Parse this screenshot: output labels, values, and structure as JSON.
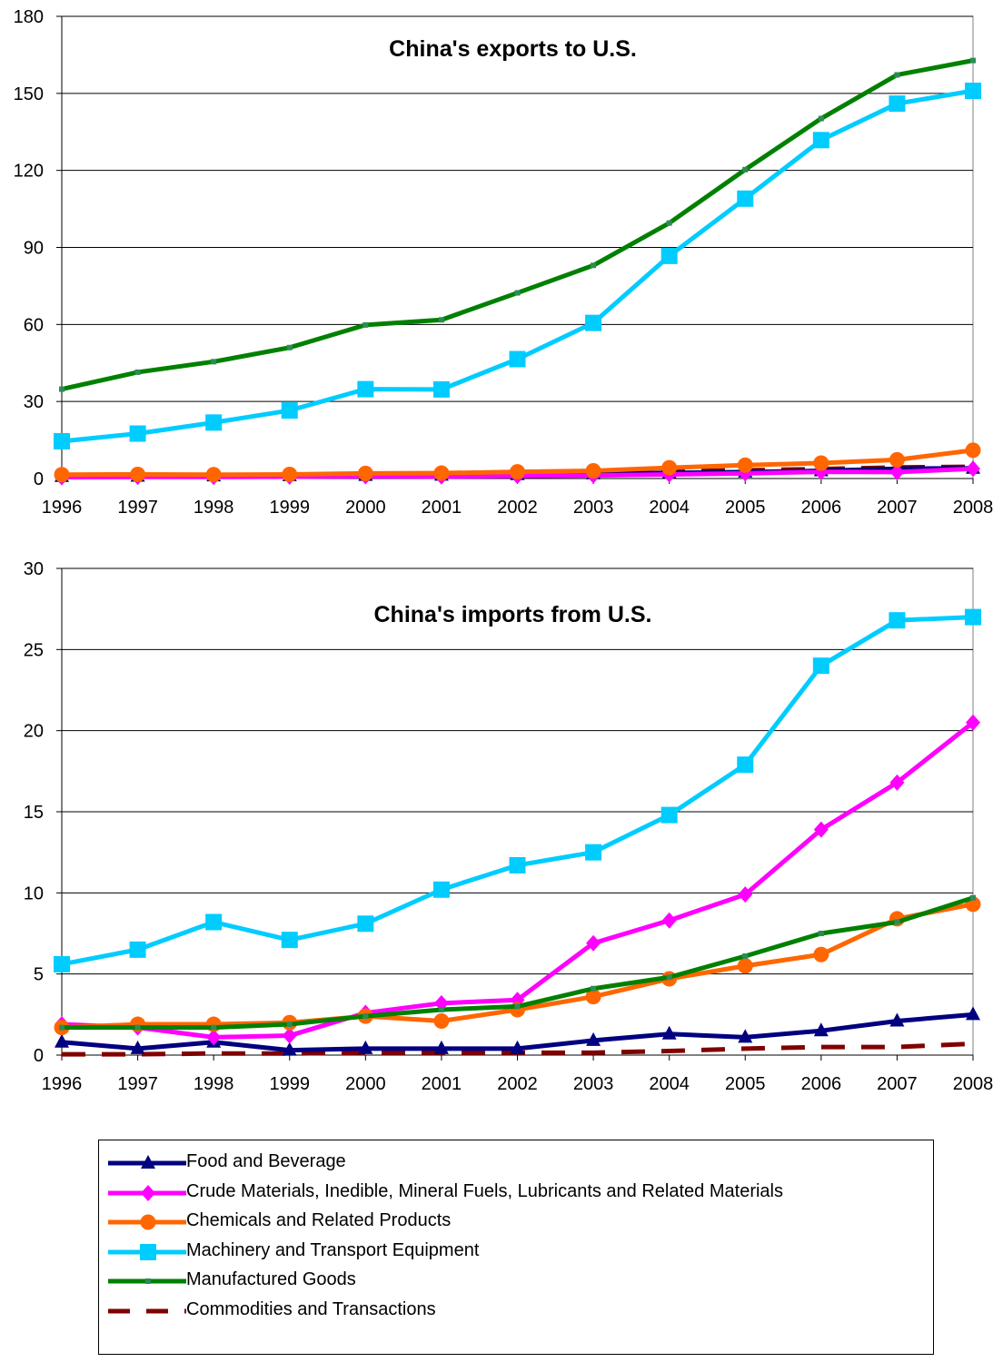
{
  "series_styles": [
    {
      "key": "food",
      "color": "#000080",
      "marker": "triangle",
      "dash": false
    },
    {
      "key": "crude",
      "color": "#ff00ff",
      "marker": "diamond",
      "dash": false
    },
    {
      "key": "chem",
      "color": "#ff6600",
      "marker": "circle",
      "dash": false
    },
    {
      "key": "mach",
      "color": "#00ccff",
      "marker": "square",
      "dash": false
    },
    {
      "key": "mfg",
      "color": "#008000",
      "marker": "smallsquare",
      "dash": false
    },
    {
      "key": "comm",
      "color": "#800000",
      "marker": "none",
      "dash": true
    }
  ],
  "marker_colors": {
    "mfg": "#2e8b57"
  },
  "legend": {
    "items": [
      {
        "key": "food",
        "label": "Food and Beverage"
      },
      {
        "key": "crude",
        "label": "Crude Materials, Inedible, Mineral Fuels, Lubricants and Related Materials"
      },
      {
        "key": "chem",
        "label": "Chemicals and Related Products"
      },
      {
        "key": "mach",
        "label": "Machinery and Transport Equipment"
      },
      {
        "key": "mfg",
        "label": "Manufactured Goods"
      },
      {
        "key": "comm",
        "label": "Commodities and Transactions"
      }
    ]
  },
  "chart_data": [
    {
      "type": "line",
      "title": "China's exports to U.S.",
      "x": [
        "1996",
        "1997",
        "1998",
        "1999",
        "2000",
        "2001",
        "2002",
        "2003",
        "2004",
        "2005",
        "2006",
        "2007",
        "2008"
      ],
      "ylim": [
        0,
        180
      ],
      "yticks": [
        0,
        30,
        60,
        90,
        120,
        150,
        180
      ],
      "grid": true,
      "series": [
        {
          "key": "food",
          "name": "Food and Beverage",
          "values": [
            0.8,
            0.9,
            1.0,
            1.1,
            1.2,
            1.3,
            1.5,
            1.8,
            2.2,
            2.5,
            3.0,
            3.8,
            4.0
          ]
        },
        {
          "key": "crude",
          "name": "Crude Materials, Inedible, Mineral Fuels, Lubricants and Related Materials",
          "values": [
            0.5,
            0.6,
            0.6,
            0.7,
            0.9,
            0.8,
            1.0,
            1.2,
            1.6,
            2.0,
            2.6,
            2.5,
            3.8
          ]
        },
        {
          "key": "chem",
          "name": "Chemicals and Related Products",
          "values": [
            1.5,
            1.6,
            1.5,
            1.6,
            2.0,
            2.1,
            2.6,
            3.0,
            4.2,
            5.2,
            6.0,
            7.3,
            11.0
          ]
        },
        {
          "key": "mach",
          "name": "Machinery and Transport Equipment",
          "values": [
            14.5,
            17.5,
            21.8,
            26.5,
            34.8,
            34.7,
            46.5,
            60.6,
            86.7,
            109.0,
            131.8,
            146.0,
            151.0
          ]
        },
        {
          "key": "mfg",
          "name": "Manufactured Goods",
          "values": [
            34.8,
            41.4,
            45.5,
            51.0,
            59.8,
            61.8,
            72.3,
            83.0,
            99.5,
            120.3,
            140.2,
            157.2,
            162.8
          ]
        },
        {
          "key": "comm",
          "name": "Commodities and Transactions",
          "values": [
            1.0,
            1.1,
            1.1,
            1.2,
            1.6,
            1.6,
            2.0,
            2.3,
            2.9,
            3.2,
            3.7,
            4.3,
            4.6
          ]
        }
      ]
    },
    {
      "type": "line",
      "title": "China's imports from U.S.",
      "x": [
        "1996",
        "1997",
        "1998",
        "1999",
        "2000",
        "2001",
        "2002",
        "2003",
        "2004",
        "2005",
        "2006",
        "2007",
        "2008"
      ],
      "ylim": [
        0,
        30
      ],
      "yticks": [
        0,
        5,
        10,
        15,
        20,
        25,
        30
      ],
      "grid": true,
      "series": [
        {
          "key": "food",
          "name": "Food and Beverage",
          "values": [
            0.8,
            0.4,
            0.8,
            0.3,
            0.4,
            0.4,
            0.4,
            0.9,
            1.3,
            1.1,
            1.5,
            2.1,
            2.5
          ]
        },
        {
          "key": "crude",
          "name": "Crude Materials, Inedible, Mineral Fuels, Lubricants and Related Materials",
          "values": [
            1.9,
            1.7,
            1.1,
            1.2,
            2.6,
            3.2,
            3.4,
            6.9,
            8.3,
            9.9,
            13.9,
            16.8,
            20.5
          ]
        },
        {
          "key": "chem",
          "name": "Chemicals and Related Products",
          "values": [
            1.7,
            1.9,
            1.9,
            2.0,
            2.4,
            2.1,
            2.8,
            3.6,
            4.7,
            5.5,
            6.2,
            8.4,
            9.3
          ]
        },
        {
          "key": "mach",
          "name": "Machinery and Transport Equipment",
          "values": [
            5.6,
            6.5,
            8.2,
            7.1,
            8.1,
            10.2,
            11.7,
            12.5,
            14.8,
            17.9,
            24.0,
            26.8,
            27.0
          ]
        },
        {
          "key": "mfg",
          "name": "Manufactured Goods",
          "values": [
            1.7,
            1.7,
            1.7,
            1.9,
            2.4,
            2.8,
            3.0,
            4.1,
            4.8,
            6.1,
            7.5,
            8.2,
            9.7
          ]
        },
        {
          "key": "comm",
          "name": "Commodities and Transactions",
          "values": [
            0.05,
            0.05,
            0.1,
            0.1,
            0.15,
            0.15,
            0.15,
            0.15,
            0.25,
            0.4,
            0.5,
            0.5,
            0.7
          ]
        }
      ]
    }
  ]
}
